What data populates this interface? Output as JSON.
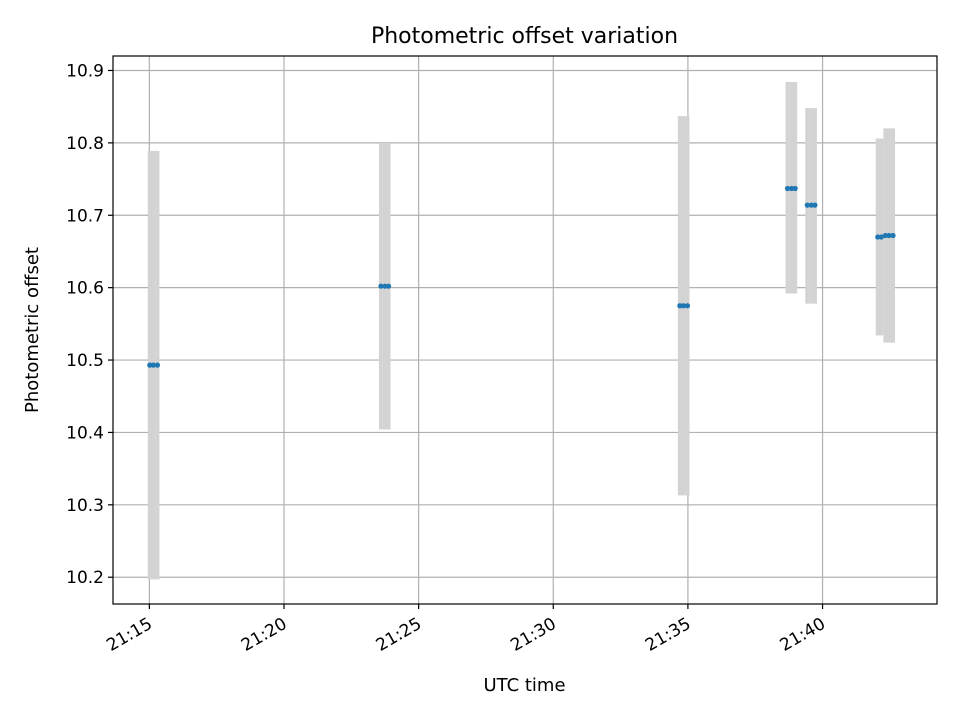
{
  "chart_data": {
    "type": "scatter",
    "title": "Photometric offset variation",
    "xlabel": "UTC time",
    "ylabel": "Photometric offset",
    "xlim": [
      "21:13:39",
      "21:44:15"
    ],
    "ylim": [
      10.163,
      10.92
    ],
    "x_ticks": [
      "21:15",
      "21:20",
      "21:25",
      "21:30",
      "21:35",
      "21:40"
    ],
    "y_ticks": [
      "10.2",
      "10.3",
      "10.4",
      "10.5",
      "10.6",
      "10.7",
      "10.8",
      "10.9"
    ],
    "grid": true,
    "colors": {
      "points": "#1f77b4",
      "error_bars": "#d3d3d3",
      "grid": "#b0b0b0"
    },
    "series": [
      {
        "points": [
          {
            "x": "21:15:01",
            "y": 10.493,
            "ylow": 10.197,
            "yhigh": 10.789
          },
          {
            "x": "21:15:09",
            "y": 10.493,
            "ylow": 10.197,
            "yhigh": 10.789
          },
          {
            "x": "21:15:18",
            "y": 10.493,
            "ylow": 10.197,
            "yhigh": 10.789
          },
          {
            "x": "21:23:36",
            "y": 10.602,
            "ylow": 10.404,
            "yhigh": 10.8
          },
          {
            "x": "21:23:45",
            "y": 10.602,
            "ylow": 10.404,
            "yhigh": 10.8
          },
          {
            "x": "21:23:53",
            "y": 10.602,
            "ylow": 10.404,
            "yhigh": 10.8
          },
          {
            "x": "21:34:42",
            "y": 10.575,
            "ylow": 10.313,
            "yhigh": 10.837
          },
          {
            "x": "21:34:50",
            "y": 10.575,
            "ylow": 10.313,
            "yhigh": 10.837
          },
          {
            "x": "21:34:59",
            "y": 10.575,
            "ylow": 10.313,
            "yhigh": 10.837
          },
          {
            "x": "21:38:42",
            "y": 10.737,
            "ylow": 10.592,
            "yhigh": 10.884
          },
          {
            "x": "21:38:51",
            "y": 10.737,
            "ylow": 10.592,
            "yhigh": 10.884
          },
          {
            "x": "21:38:59",
            "y": 10.737,
            "ylow": 10.592,
            "yhigh": 10.884
          },
          {
            "x": "21:39:26",
            "y": 10.714,
            "ylow": 10.578,
            "yhigh": 10.848
          },
          {
            "x": "21:39:35",
            "y": 10.714,
            "ylow": 10.578,
            "yhigh": 10.848
          },
          {
            "x": "21:39:43",
            "y": 10.714,
            "ylow": 10.578,
            "yhigh": 10.848
          },
          {
            "x": "21:42:03",
            "y": 10.67,
            "ylow": 10.534,
            "yhigh": 10.806
          },
          {
            "x": "21:42:11",
            "y": 10.67,
            "ylow": 10.534,
            "yhigh": 10.806
          },
          {
            "x": "21:42:20",
            "y": 10.672,
            "ylow": 10.524,
            "yhigh": 10.82
          },
          {
            "x": "21:42:28",
            "y": 10.672,
            "ylow": 10.524,
            "yhigh": 10.82
          },
          {
            "x": "21:42:37",
            "y": 10.672,
            "ylow": 10.524,
            "yhigh": 10.82
          }
        ]
      }
    ]
  }
}
